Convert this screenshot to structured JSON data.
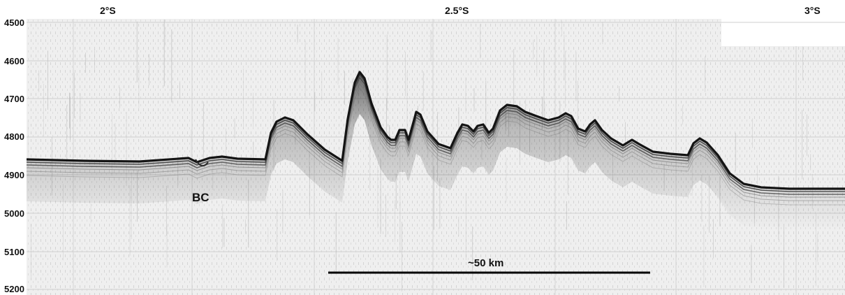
{
  "figure": {
    "latitude_labels": [
      "2°S",
      "2.5°S",
      "3°S"
    ],
    "depth_labels": [
      "4500",
      "4600",
      "4700",
      "4800",
      "4900",
      "5000",
      "5100",
      "5200"
    ],
    "annotation": "BC",
    "scale_bar_label": "~50 km"
  },
  "colors": {
    "background": "#f2f2f2",
    "reflector": "#141414",
    "text": "#111111"
  }
}
